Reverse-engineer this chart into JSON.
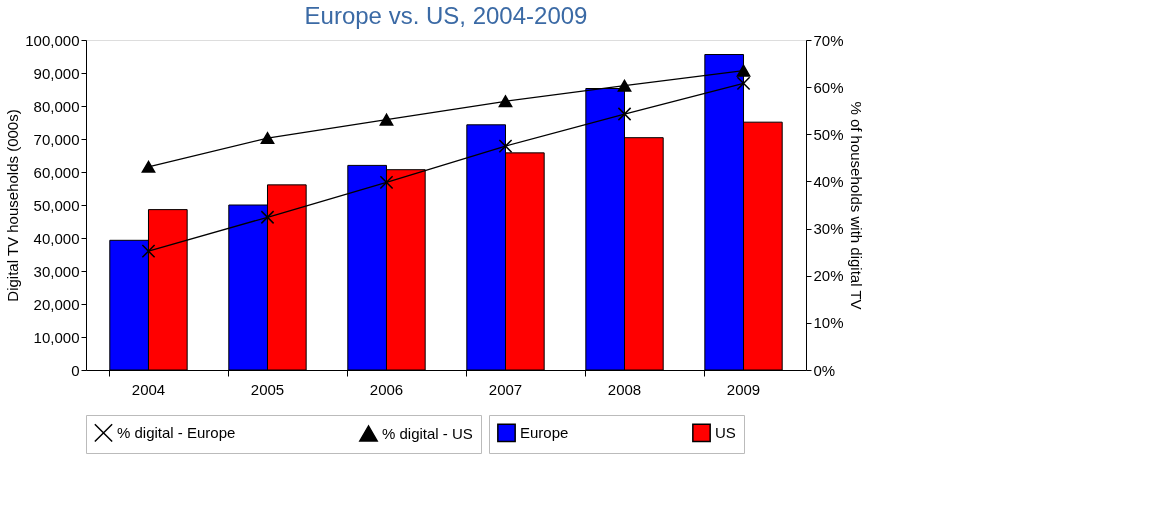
{
  "chart_data": {
    "type": "bar",
    "title": "Europe  vs. US, 2004-2009",
    "ylabel": "Digital TV households (000s)",
    "y2label": "% of households with digital TV",
    "categories": [
      "2004",
      "2005",
      "2006",
      "2007",
      "2008",
      "2009"
    ],
    "series": [
      {
        "name": "Europe",
        "color": "#0000ff",
        "values": [
          39300,
          50000,
          62000,
          74300,
          85300,
          95600
        ]
      },
      {
        "name": "US",
        "color": "#ff0000",
        "values": [
          48600,
          56100,
          60700,
          65800,
          70400,
          75100
        ]
      },
      {
        "name": "% digital - Europe",
        "type": "line",
        "axis": "y2",
        "marker": "cross",
        "color": "#000000",
        "values": [
          25.2,
          32.4,
          39.8,
          47.5,
          54.3,
          60.8
        ]
      },
      {
        "name": "% digital - US",
        "type": "line",
        "axis": "y2",
        "marker": "triangle",
        "color": "#000000",
        "values": [
          43.1,
          49.2,
          53.1,
          57.0,
          60.3,
          63.5
        ]
      }
    ],
    "ylim": [
      0,
      100000
    ],
    "yticks": [
      0,
      {
        "value": 10000,
        "label": "10,000"
      },
      {
        "value": 20000,
        "label": "20,000"
      },
      {
        "value": 30000,
        "label": "30,000"
      },
      {
        "value": 40000,
        "label": "40,000"
      },
      {
        "value": 50000,
        "label": "50,000"
      },
      {
        "value": 60000,
        "label": "60,000"
      },
      {
        "value": 70000,
        "label": "70,000"
      },
      {
        "value": 80000,
        "label": "80,000"
      },
      {
        "value": 90000,
        "label": "90,000"
      },
      {
        "value": 100000,
        "label": "100,000"
      }
    ],
    "y2lim": [
      0,
      70
    ],
    "y2ticks": [
      {
        "value": 0,
        "label": "0%"
      },
      {
        "value": 10,
        "label": "10%"
      },
      {
        "value": 20,
        "label": "20%"
      },
      {
        "value": 30,
        "label": "30%"
      },
      {
        "value": 40,
        "label": "40%"
      },
      {
        "value": 50,
        "label": "50%"
      },
      {
        "value": 60,
        "label": "60%"
      },
      {
        "value": 70,
        "label": "70%"
      }
    ],
    "legend": "bottom",
    "grid": false
  }
}
